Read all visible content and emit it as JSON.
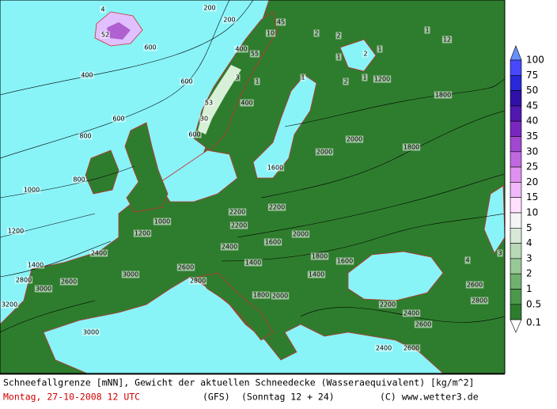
{
  "map": {
    "labels": [
      52,
      4,
      200,
      200,
      400,
      600,
      800,
      1000,
      1200,
      1400,
      600,
      600,
      800,
      600,
      400,
      400,
      55,
      45,
      10,
      2,
      1,
      2,
      1,
      12,
      2,
      53,
      30,
      1,
      1,
      3,
      1,
      2,
      1,
      1200,
      1600,
      1800,
      2000,
      1800,
      2000,
      2200,
      2000,
      1800,
      1600,
      1400,
      1200,
      1000,
      2200,
      2400,
      2800,
      2600,
      3000,
      3200,
      3000,
      2800,
      2600,
      2400,
      2200,
      2000,
      1800,
      1600,
      1400,
      2200,
      2400,
      2600,
      3000,
      2600,
      2400,
      4,
      3,
      2600,
      2800
    ]
  },
  "legend": {
    "levels": [
      100,
      75,
      50,
      45,
      40,
      35,
      30,
      25,
      20,
      15,
      10,
      5,
      4,
      3,
      2,
      1,
      0.5,
      0.1
    ],
    "colors": [
      "#4848ff",
      "#2828d8",
      "#3010a8",
      "#5018b0",
      "#7828c0",
      "#a048d0",
      "#c068e0",
      "#e090f0",
      "#f0b8f8",
      "#ffe0ff",
      "#f4f4f4",
      "#d8e8d8",
      "#b8d8b8",
      "#98c898",
      "#70b070",
      "#4c984c",
      "#2e7d2e",
      "#ffffff"
    ],
    "over_color": "#6890ff"
  },
  "caption": {
    "line1": "Schneefallgrenze [mNN], Gewicht der aktuellen Schneedecke (Wasseraequivalent) [kg/m^2]",
    "date": "Montag, 27-10-2008  12 UTC",
    "model": "(GFS)",
    "run": "(Sonntag 12 + 24)",
    "copyright": "(C) www.wetter3.de"
  }
}
